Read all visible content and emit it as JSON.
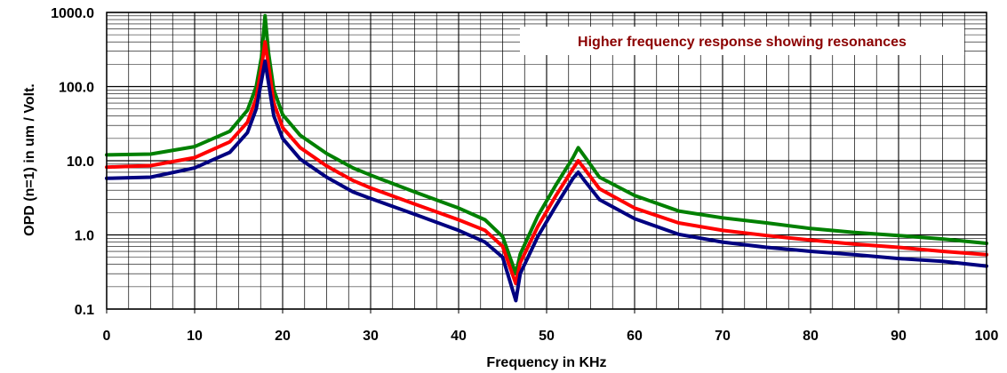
{
  "chart_data": {
    "type": "line",
    "title": "",
    "xlabel": "Frequency in KHz",
    "ylabel": "OPD (n=1) in um / Volt.",
    "annotation": "Higher frequency response showing resonances",
    "xlim": [
      0,
      100
    ],
    "ylim": [
      0.1,
      1000
    ],
    "yscale": "log",
    "grid": true,
    "legend": "none",
    "x_ticks": [
      0,
      10,
      20,
      30,
      40,
      50,
      60,
      70,
      80,
      90,
      100
    ],
    "x_tick_labels": [
      "0",
      "10",
      "20",
      "30",
      "40",
      "50",
      "60",
      "70",
      "80",
      "90",
      "100"
    ],
    "y_ticks": [
      0.1,
      1,
      10,
      100,
      1000
    ],
    "y_tick_labels": [
      "0.1",
      "1.0",
      "10.0",
      "100.0",
      "1000.0"
    ],
    "colors": {
      "annotation": "#8b0000",
      "grid": "#000000",
      "series": [
        "#008000",
        "#ff0000",
        "#000080"
      ]
    },
    "series": [
      {
        "color": "#008000",
        "points": [
          [
            0,
            12
          ],
          [
            5,
            12.3
          ],
          [
            10,
            15.5
          ],
          [
            14,
            25
          ],
          [
            16,
            48
          ],
          [
            17,
            100
          ],
          [
            17.6,
            250
          ],
          [
            18,
            900
          ],
          [
            18.4,
            280
          ],
          [
            19,
            90
          ],
          [
            20,
            42
          ],
          [
            22,
            22
          ],
          [
            25,
            12.5
          ],
          [
            28,
            8
          ],
          [
            30,
            6.4
          ],
          [
            35,
            3.8
          ],
          [
            40,
            2.3
          ],
          [
            43,
            1.6
          ],
          [
            45,
            0.95
          ],
          [
            46.5,
            0.3
          ],
          [
            47,
            0.55
          ],
          [
            49,
            1.8
          ],
          [
            51,
            4.6
          ],
          [
            53,
            11
          ],
          [
            53.6,
            15
          ],
          [
            54.3,
            11.5
          ],
          [
            56,
            6
          ],
          [
            60,
            3.4
          ],
          [
            65,
            2.1
          ],
          [
            70,
            1.7
          ],
          [
            75,
            1.45
          ],
          [
            80,
            1.22
          ],
          [
            85,
            1.08
          ],
          [
            90,
            0.98
          ],
          [
            95,
            0.88
          ],
          [
            100,
            0.77
          ]
        ]
      },
      {
        "color": "#ff0000",
        "points": [
          [
            0,
            8.2
          ],
          [
            5,
            8.6
          ],
          [
            10,
            11
          ],
          [
            14,
            18
          ],
          [
            16,
            33
          ],
          [
            17,
            70
          ],
          [
            17.6,
            180
          ],
          [
            18,
            400
          ],
          [
            18.5,
            160
          ],
          [
            19,
            60
          ],
          [
            20,
            28
          ],
          [
            22,
            15
          ],
          [
            25,
            8.5
          ],
          [
            28,
            5.4
          ],
          [
            30,
            4.3
          ],
          [
            35,
            2.6
          ],
          [
            40,
            1.6
          ],
          [
            43,
            1.15
          ],
          [
            45,
            0.7
          ],
          [
            46.5,
            0.22
          ],
          [
            47,
            0.42
          ],
          [
            49,
            1.3
          ],
          [
            51,
            3.3
          ],
          [
            53,
            7.8
          ],
          [
            53.6,
            10
          ],
          [
            54.3,
            7.8
          ],
          [
            56,
            4.2
          ],
          [
            60,
            2.3
          ],
          [
            65,
            1.45
          ],
          [
            70,
            1.15
          ],
          [
            75,
            0.98
          ],
          [
            80,
            0.85
          ],
          [
            85,
            0.75
          ],
          [
            90,
            0.68
          ],
          [
            95,
            0.6
          ],
          [
            100,
            0.54
          ]
        ]
      },
      {
        "color": "#000080",
        "points": [
          [
            0,
            5.8
          ],
          [
            5,
            6
          ],
          [
            10,
            8
          ],
          [
            14,
            13
          ],
          [
            16,
            24
          ],
          [
            17,
            50
          ],
          [
            17.6,
            120
          ],
          [
            18,
            220
          ],
          [
            18.5,
            95
          ],
          [
            19,
            40
          ],
          [
            20,
            20
          ],
          [
            22,
            10.5
          ],
          [
            25,
            6
          ],
          [
            28,
            3.8
          ],
          [
            30,
            3.1
          ],
          [
            35,
            1.9
          ],
          [
            40,
            1.15
          ],
          [
            43,
            0.8
          ],
          [
            45,
            0.5
          ],
          [
            46.5,
            0.13
          ],
          [
            47,
            0.3
          ],
          [
            49,
            0.95
          ],
          [
            51,
            2.4
          ],
          [
            53,
            5.8
          ],
          [
            53.6,
            7
          ],
          [
            54.3,
            5.4
          ],
          [
            56,
            3
          ],
          [
            60,
            1.65
          ],
          [
            65,
            1.02
          ],
          [
            70,
            0.8
          ],
          [
            75,
            0.68
          ],
          [
            80,
            0.6
          ],
          [
            85,
            0.54
          ],
          [
            90,
            0.48
          ],
          [
            95,
            0.44
          ],
          [
            100,
            0.38
          ]
        ]
      }
    ]
  }
}
